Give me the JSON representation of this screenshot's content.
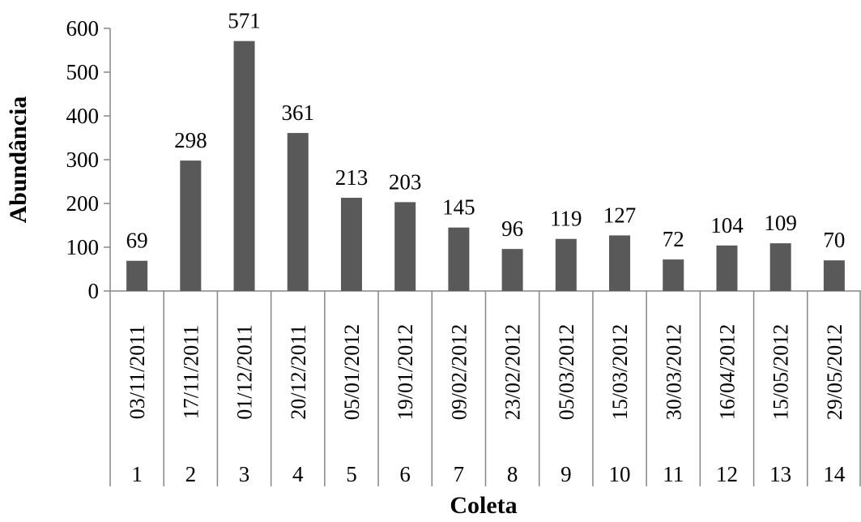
{
  "chart_data": {
    "type": "bar",
    "ylabel": "Abundância",
    "xlabel": "Coleta",
    "ylim": [
      0,
      600
    ],
    "yticks": [
      0,
      100,
      200,
      300,
      400,
      500,
      600
    ],
    "grid": false,
    "bar_color": "#595959",
    "categories": [
      {
        "date": "03/11/2011",
        "coleta": "1"
      },
      {
        "date": "17/11/2011",
        "coleta": "2"
      },
      {
        "date": "01/12/2011",
        "coleta": "3"
      },
      {
        "date": "20/12/2011",
        "coleta": "4"
      },
      {
        "date": "05/01/2012",
        "coleta": "5"
      },
      {
        "date": "19/01/2012",
        "coleta": "6"
      },
      {
        "date": "09/02/2012",
        "coleta": "7"
      },
      {
        "date": "23/02/2012",
        "coleta": "8"
      },
      {
        "date": "05/03/2012",
        "coleta": "9"
      },
      {
        "date": "15/03/2012",
        "coleta": "10"
      },
      {
        "date": "30/03/2012",
        "coleta": "11"
      },
      {
        "date": "16/04/2012",
        "coleta": "12"
      },
      {
        "date": "15/05/2012",
        "coleta": "13"
      },
      {
        "date": "29/05/2012",
        "coleta": "14"
      }
    ],
    "values": [
      69,
      298,
      571,
      361,
      213,
      203,
      145,
      96,
      119,
      127,
      72,
      104,
      109,
      70
    ]
  }
}
